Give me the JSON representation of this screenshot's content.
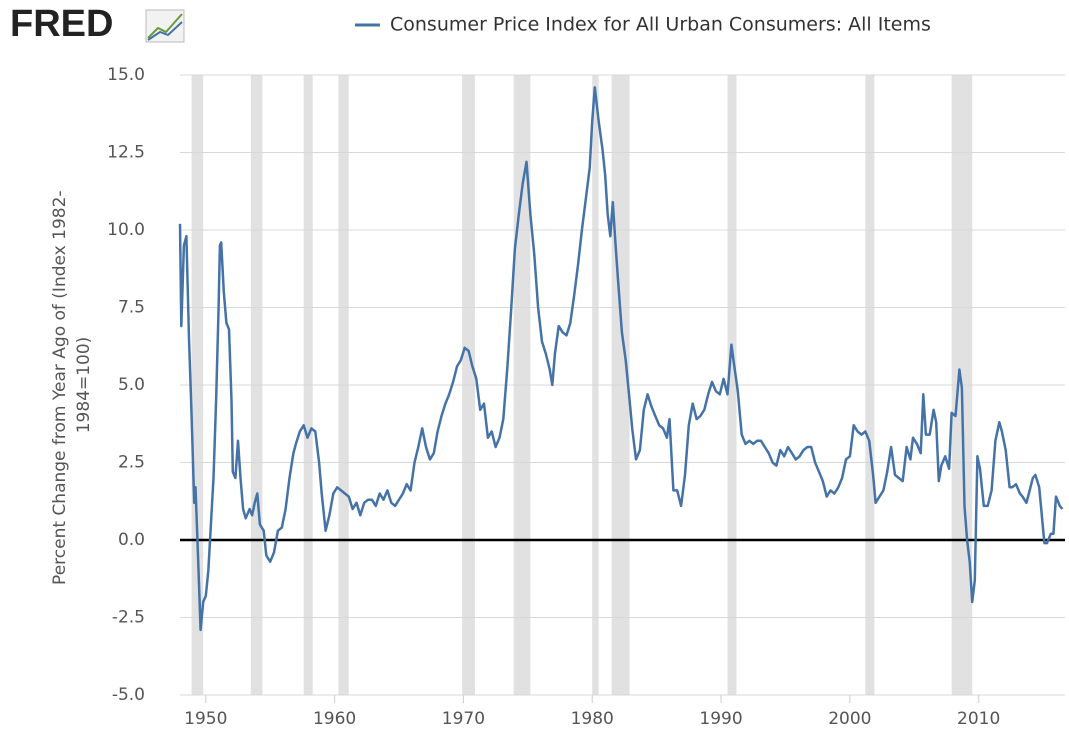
{
  "chart_data": {
    "type": "line",
    "logo": "FRED",
    "title": "Consumer Price Index for All Urban Consumers: All Items",
    "ylabel": [
      "Percent Change from Year Ago of (Index 1982-",
      "1984=100)"
    ],
    "xlim": [
      1948,
      2016.7
    ],
    "xticks": [
      1950,
      1960,
      1970,
      1980,
      1990,
      2000,
      2010
    ],
    "ylim": [
      -5,
      15
    ],
    "yticks": [
      {
        "value": -5,
        "label": "-5.0"
      },
      -2.5,
      {
        "value": 0,
        "label": "0.0"
      },
      2.5,
      {
        "value": 5,
        "label": "5.0"
      },
      7.5,
      {
        "value": 10,
        "label": "10.0"
      },
      12.5,
      {
        "value": 15,
        "label": "15.0"
      }
    ],
    "grid": true,
    "recession_color": "#e1e1e1",
    "recessions": [
      [
        1948.9,
        1949.8
      ],
      [
        1953.5,
        1954.4
      ],
      [
        1957.6,
        1958.3
      ],
      [
        1960.3,
        1961.1
      ],
      [
        1969.9,
        1970.9
      ],
      [
        1973.9,
        1975.2
      ],
      [
        1980.0,
        1980.5
      ],
      [
        1981.5,
        1982.9
      ],
      [
        1990.5,
        1991.2
      ],
      [
        2001.2,
        2001.9
      ],
      [
        2007.9,
        2009.5
      ]
    ],
    "x": [
      1948.0,
      1948.1,
      1948.3,
      1948.5,
      1948.7,
      1948.9,
      1949.1,
      1949.2,
      1949.4,
      1949.6,
      1949.8,
      1950.0,
      1950.2,
      1950.4,
      1950.6,
      1950.8,
      1951.0,
      1951.1,
      1951.2,
      1951.4,
      1951.6,
      1951.8,
      1952.0,
      1952.1,
      1952.3,
      1952.5,
      1952.7,
      1952.9,
      1953.1,
      1953.4,
      1953.6,
      1953.8,
      1954.0,
      1954.2,
      1954.5,
      1954.7,
      1955.0,
      1955.3,
      1955.6,
      1955.9,
      1956.2,
      1956.5,
      1956.8,
      1957.0,
      1957.3,
      1957.6,
      1957.9,
      1958.2,
      1958.5,
      1958.8,
      1959.0,
      1959.3,
      1959.6,
      1959.9,
      1960.2,
      1960.5,
      1960.8,
      1961.1,
      1961.4,
      1961.7,
      1962.0,
      1962.3,
      1962.6,
      1962.9,
      1963.2,
      1963.5,
      1963.8,
      1964.1,
      1964.4,
      1964.7,
      1965.0,
      1965.3,
      1965.6,
      1965.9,
      1966.2,
      1966.5,
      1966.8,
      1967.1,
      1967.4,
      1967.7,
      1968.0,
      1968.3,
      1968.6,
      1968.9,
      1969.2,
      1969.5,
      1969.8,
      1970.1,
      1970.4,
      1970.7,
      1971.0,
      1971.3,
      1971.6,
      1971.9,
      1972.2,
      1972.5,
      1972.8,
      1973.1,
      1973.4,
      1973.7,
      1974.0,
      1974.3,
      1974.6,
      1974.9,
      1975.2,
      1975.5,
      1975.8,
      1976.1,
      1976.4,
      1976.7,
      1976.9,
      1977.1,
      1977.4,
      1977.7,
      1978.0,
      1978.3,
      1978.6,
      1978.9,
      1979.2,
      1979.5,
      1979.8,
      1980.0,
      1980.2,
      1980.5,
      1980.8,
      1981.0,
      1981.2,
      1981.4,
      1981.6,
      1981.8,
      1982.0,
      1982.3,
      1982.6,
      1982.9,
      1983.1,
      1983.4,
      1983.7,
      1984.0,
      1984.3,
      1984.6,
      1984.9,
      1985.2,
      1985.5,
      1985.8,
      1986.0,
      1986.3,
      1986.6,
      1986.9,
      1987.2,
      1987.5,
      1987.8,
      1988.1,
      1988.4,
      1988.7,
      1989.0,
      1989.3,
      1989.6,
      1989.9,
      1990.2,
      1990.5,
      1990.8,
      1991.0,
      1991.3,
      1991.6,
      1991.9,
      1992.2,
      1992.5,
      1992.8,
      1993.1,
      1993.4,
      1993.7,
      1994.0,
      1994.3,
      1994.6,
      1994.9,
      1995.2,
      1995.5,
      1995.8,
      1996.1,
      1996.4,
      1996.7,
      1997.0,
      1997.3,
      1997.6,
      1997.9,
      1998.2,
      1998.5,
      1998.8,
      1999.1,
      1999.4,
      1999.7,
      2000.0,
      2000.3,
      2000.6,
      2000.9,
      2001.2,
      2001.5,
      2001.8,
      2002.0,
      2002.3,
      2002.6,
      2002.9,
      2003.2,
      2003.5,
      2003.8,
      2004.1,
      2004.4,
      2004.7,
      2004.9,
      2005.2,
      2005.5,
      2005.7,
      2005.9,
      2006.2,
      2006.5,
      2006.7,
      2006.9,
      2007.1,
      2007.4,
      2007.7,
      2007.9,
      2008.2,
      2008.5,
      2008.7,
      2008.9,
      2009.1,
      2009.3,
      2009.5,
      2009.7,
      2009.9,
      2010.1,
      2010.4,
      2010.7,
      2011.0,
      2011.3,
      2011.6,
      2011.8,
      2012.1,
      2012.4,
      2012.6,
      2012.9,
      2013.2,
      2013.4,
      2013.7,
      2013.9,
      2014.2,
      2014.4,
      2014.7,
      2014.9,
      2015.1,
      2015.3,
      2015.6,
      2015.8,
      2016.0,
      2016.3,
      2016.5
    ],
    "series": [
      {
        "name": "Consumer Price Index for All Urban Consumers: All Items",
        "color": "#4572a7",
        "values": [
          10.2,
          6.9,
          9.5,
          9.8,
          6.5,
          4.0,
          1.2,
          1.7,
          -0.5,
          -2.9,
          -2.0,
          -1.8,
          -1.0,
          0.5,
          2.0,
          4.5,
          7.5,
          9.5,
          9.6,
          8.0,
          7.0,
          6.8,
          4.5,
          2.2,
          2.0,
          3.2,
          2.0,
          1.0,
          0.7,
          1.0,
          0.8,
          1.2,
          1.5,
          0.5,
          0.3,
          -0.5,
          -0.7,
          -0.4,
          0.3,
          0.4,
          1.0,
          2.0,
          2.8,
          3.1,
          3.5,
          3.7,
          3.3,
          3.6,
          3.5,
          2.5,
          1.5,
          0.3,
          0.8,
          1.5,
          1.7,
          1.6,
          1.5,
          1.4,
          1.0,
          1.2,
          0.8,
          1.2,
          1.3,
          1.3,
          1.1,
          1.5,
          1.3,
          1.6,
          1.2,
          1.1,
          1.3,
          1.5,
          1.8,
          1.6,
          2.5,
          3.0,
          3.6,
          3.0,
          2.6,
          2.8,
          3.5,
          4.0,
          4.4,
          4.7,
          5.1,
          5.6,
          5.8,
          6.2,
          6.1,
          5.6,
          5.2,
          4.2,
          4.4,
          3.3,
          3.5,
          3.0,
          3.3,
          3.9,
          5.5,
          7.4,
          9.4,
          10.5,
          11.5,
          12.2,
          10.5,
          9.2,
          7.5,
          6.4,
          6.0,
          5.5,
          5.0,
          6.0,
          6.9,
          6.7,
          6.6,
          7.0,
          7.9,
          8.9,
          10.0,
          11.0,
          12.0,
          13.5,
          14.6,
          13.5,
          12.6,
          11.8,
          10.5,
          9.8,
          10.9,
          9.6,
          8.4,
          6.7,
          5.8,
          4.5,
          3.6,
          2.6,
          2.9,
          4.2,
          4.7,
          4.3,
          4.0,
          3.7,
          3.6,
          3.3,
          3.9,
          1.6,
          1.6,
          1.1,
          2.1,
          3.7,
          4.4,
          3.9,
          4.0,
          4.2,
          4.7,
          5.1,
          4.8,
          4.7,
          5.2,
          4.7,
          6.3,
          5.7,
          4.8,
          3.4,
          3.1,
          3.2,
          3.1,
          3.2,
          3.2,
          3.0,
          2.8,
          2.5,
          2.4,
          2.9,
          2.7,
          3.0,
          2.8,
          2.6,
          2.7,
          2.9,
          3.0,
          3.0,
          2.5,
          2.2,
          1.9,
          1.4,
          1.6,
          1.5,
          1.7,
          2.0,
          2.6,
          2.7,
          3.7,
          3.5,
          3.4,
          3.5,
          3.2,
          2.1,
          1.2,
          1.4,
          1.6,
          2.2,
          3.0,
          2.1,
          2.0,
          1.9,
          3.0,
          2.6,
          3.3,
          3.1,
          2.8,
          4.7,
          3.4,
          3.4,
          4.2,
          3.8,
          1.9,
          2.4,
          2.7,
          2.3,
          4.1,
          4.0,
          5.5,
          4.9,
          1.1,
          0.0,
          -0.7,
          -2.0,
          -1.3,
          2.7,
          2.3,
          1.1,
          1.1,
          1.6,
          3.2,
          3.8,
          3.5,
          2.9,
          1.7,
          1.7,
          1.8,
          1.5,
          1.4,
          1.2,
          1.5,
          2.0,
          2.1,
          1.7,
          0.8,
          -0.1,
          -0.1,
          0.2,
          0.2,
          1.4,
          1.1,
          1.0
        ]
      }
    ]
  }
}
